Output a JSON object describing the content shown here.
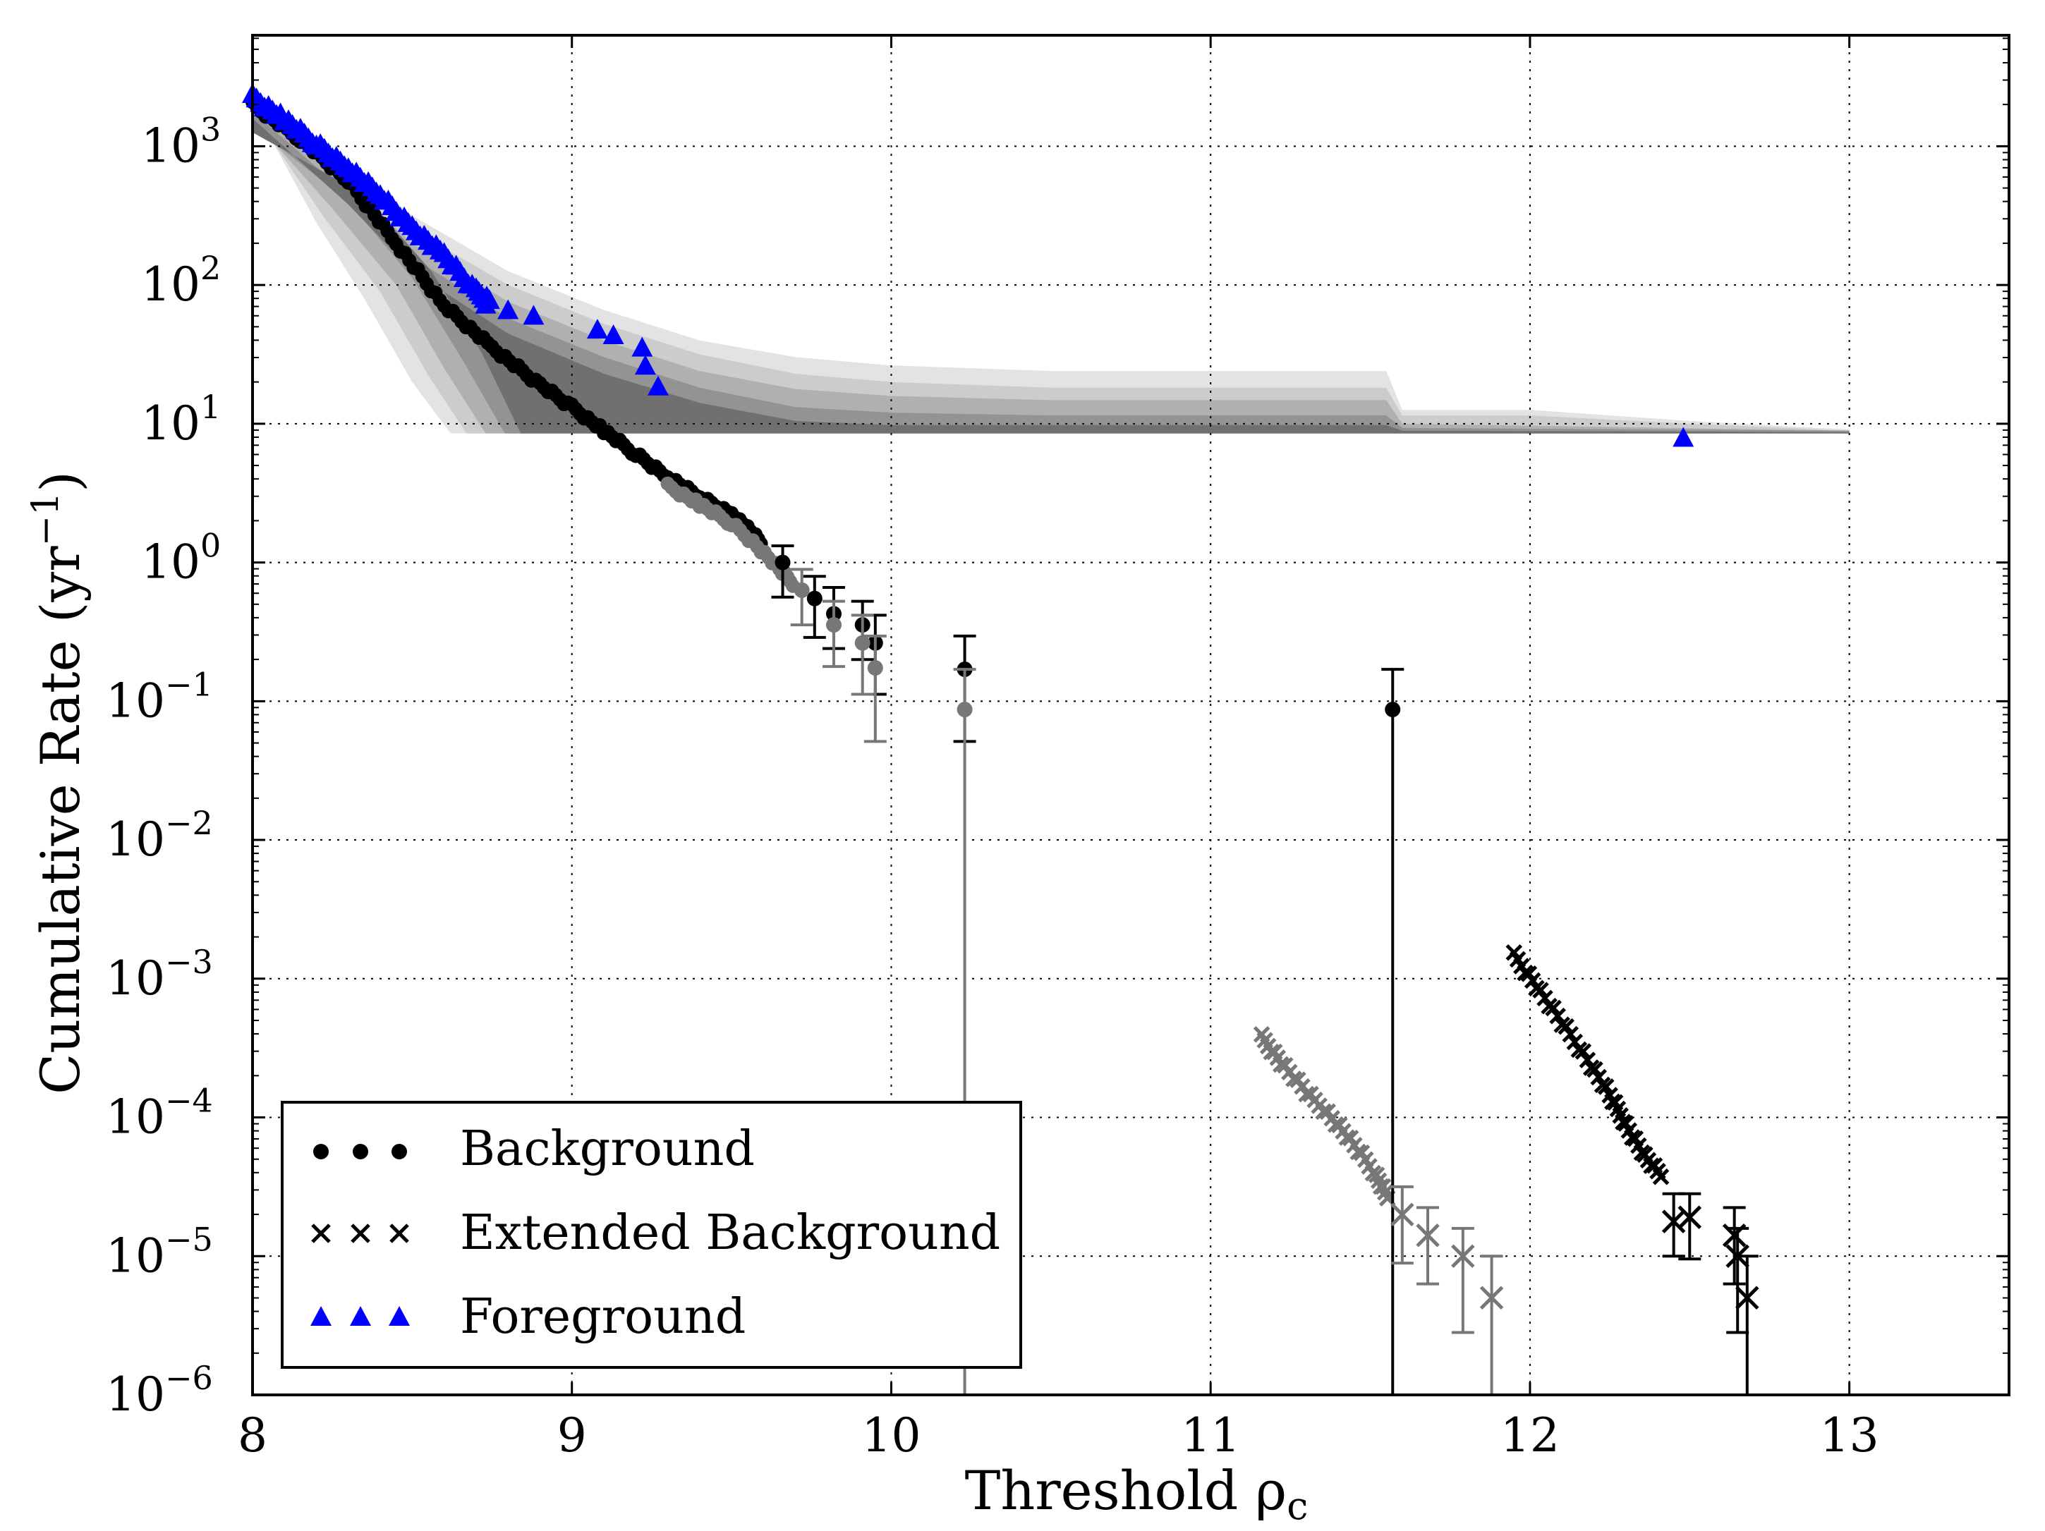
{
  "chart_data": {
    "type": "scatter",
    "xlabel": "Threshold ρ",
    "xlabel_sub": "c",
    "ylabel": "Cumulative Rate (yr",
    "ylabel_sup": "−1",
    "ylabel_close": ")",
    "xlim": [
      8,
      13.5
    ],
    "ylim_log10": [
      -6,
      3.8
    ],
    "y_scale": "log",
    "grid": true,
    "x_ticks": [
      {
        "value": 8,
        "label": "8"
      },
      {
        "value": 9,
        "label": "9"
      },
      {
        "value": 10,
        "label": "10"
      },
      {
        "value": 11,
        "label": "11"
      },
      {
        "value": 12,
        "label": "12"
      },
      {
        "value": 13,
        "label": "13"
      }
    ],
    "y_ticks": [
      {
        "exp": 3,
        "base": "10",
        "sup": "3"
      },
      {
        "exp": 2,
        "base": "10",
        "sup": "2"
      },
      {
        "exp": 1,
        "base": "10",
        "sup": "1"
      },
      {
        "exp": 0,
        "base": "10",
        "sup": "0"
      },
      {
        "exp": -1,
        "base": "10",
        "sup": "−1"
      },
      {
        "exp": -2,
        "base": "10",
        "sup": "−2"
      },
      {
        "exp": -3,
        "base": "10",
        "sup": "−3"
      },
      {
        "exp": -4,
        "base": "10",
        "sup": "−4"
      },
      {
        "exp": -5,
        "base": "10",
        "sup": "−5"
      },
      {
        "exp": -6,
        "base": "10",
        "sup": "−6"
      }
    ],
    "legend": {
      "position": "lower-left",
      "entries": [
        {
          "label": "Background",
          "marker": "circle",
          "color": "#000000"
        },
        {
          "label": "Extended Background",
          "marker": "x",
          "color": "#000000"
        },
        {
          "label": "Foreground",
          "marker": "triangle",
          "color": "#0000ff"
        }
      ]
    },
    "colors": {
      "primary": "#000000",
      "secondary": "#777777",
      "foreground": "#0000ff",
      "band_shades": [
        "#e3e3e3",
        "#cccccc",
        "#b0b0b0",
        "#939393",
        "#707070"
      ]
    },
    "bands": [
      {
        "name": "sigma5",
        "upper": [
          [
            8,
            3.4
          ],
          [
            8.3,
            2.88
          ],
          [
            8.5,
            2.5
          ],
          [
            8.8,
            2.1
          ],
          [
            9.1,
            1.82
          ],
          [
            9.4,
            1.6
          ],
          [
            9.7,
            1.48
          ],
          [
            10.0,
            1.42
          ],
          [
            10.5,
            1.38
          ],
          [
            11.2,
            1.38
          ],
          [
            11.55,
            1.38
          ],
          [
            11.6,
            1.1
          ],
          [
            12.0,
            1.1
          ],
          [
            12.5,
            1.02
          ],
          [
            12.9,
            0.97
          ],
          [
            13.0,
            0.96
          ]
        ],
        "lower": [
          [
            13.0,
            0.93
          ],
          [
            8.62,
            0.93
          ],
          [
            8.5,
            1.3
          ],
          [
            8.35,
            1.9
          ],
          [
            8.2,
            2.45
          ],
          [
            8.0,
            3.3
          ]
        ]
      },
      {
        "name": "sigma4",
        "upper": [
          [
            8,
            3.35
          ],
          [
            8.3,
            2.8
          ],
          [
            8.5,
            2.4
          ],
          [
            8.8,
            2.0
          ],
          [
            9.1,
            1.72
          ],
          [
            9.4,
            1.5
          ],
          [
            9.7,
            1.36
          ],
          [
            10.0,
            1.3
          ],
          [
            10.5,
            1.26
          ],
          [
            11.2,
            1.26
          ],
          [
            11.55,
            1.26
          ],
          [
            11.6,
            1.06
          ],
          [
            12.0,
            1.06
          ],
          [
            12.5,
            1.0
          ],
          [
            12.9,
            0.96
          ],
          [
            13.0,
            0.95
          ]
        ],
        "lower": [
          [
            13.0,
            0.93
          ],
          [
            8.67,
            0.93
          ],
          [
            8.55,
            1.35
          ],
          [
            8.4,
            1.95
          ],
          [
            8.22,
            2.5
          ],
          [
            8.0,
            3.25
          ]
        ]
      },
      {
        "name": "sigma3",
        "upper": [
          [
            8,
            3.3
          ],
          [
            8.3,
            2.72
          ],
          [
            8.5,
            2.3
          ],
          [
            8.8,
            1.88
          ],
          [
            9.1,
            1.6
          ],
          [
            9.4,
            1.38
          ],
          [
            9.7,
            1.25
          ],
          [
            10.0,
            1.2
          ],
          [
            10.5,
            1.17
          ],
          [
            11.55,
            1.17
          ],
          [
            11.6,
            1.0
          ],
          [
            13.0,
            0.95
          ]
        ],
        "lower": [
          [
            13.0,
            0.93
          ],
          [
            8.73,
            0.93
          ],
          [
            8.6,
            1.4
          ],
          [
            8.45,
            2.0
          ],
          [
            8.25,
            2.55
          ],
          [
            8.0,
            3.2
          ]
        ]
      },
      {
        "name": "sigma2",
        "upper": [
          [
            8,
            3.25
          ],
          [
            8.3,
            2.65
          ],
          [
            8.5,
            2.2
          ],
          [
            8.8,
            1.76
          ],
          [
            9.1,
            1.48
          ],
          [
            9.4,
            1.26
          ],
          [
            9.7,
            1.12
          ],
          [
            10.0,
            1.08
          ],
          [
            10.5,
            1.06
          ],
          [
            11.55,
            1.06
          ],
          [
            11.6,
            0.97
          ],
          [
            13.0,
            0.95
          ]
        ],
        "lower": [
          [
            13.0,
            0.93
          ],
          [
            8.79,
            0.93
          ],
          [
            8.66,
            1.45
          ],
          [
            8.5,
            2.05
          ],
          [
            8.3,
            2.6
          ],
          [
            8.0,
            3.15
          ]
        ]
      },
      {
        "name": "sigma1",
        "upper": [
          [
            8,
            3.2
          ],
          [
            8.3,
            2.58
          ],
          [
            8.5,
            2.1
          ],
          [
            8.8,
            1.65
          ],
          [
            9.1,
            1.36
          ],
          [
            9.4,
            1.15
          ],
          [
            9.7,
            1.02
          ],
          [
            10.0,
            0.99
          ],
          [
            11.55,
            0.99
          ],
          [
            11.6,
            0.95
          ],
          [
            13.0,
            0.94
          ]
        ],
        "lower": [
          [
            13.0,
            0.93
          ],
          [
            8.84,
            0.93
          ],
          [
            8.72,
            1.5
          ],
          [
            8.56,
            2.1
          ],
          [
            8.35,
            2.65
          ],
          [
            8.0,
            3.1
          ]
        ]
      }
    ],
    "series": [
      {
        "name": "Background (upper)",
        "marker": "circle",
        "color": "#000000",
        "points": [
          [
            9.66,
            0.0
          ],
          [
            9.76,
            -0.26
          ],
          [
            9.82,
            -0.37
          ],
          [
            9.91,
            -0.45
          ],
          [
            9.95,
            -0.58
          ],
          [
            10.23,
            -0.77
          ],
          [
            11.57,
            -1.06
          ]
        ],
        "err_lo": [
          [
            9.66,
            -0.25
          ],
          [
            9.76,
            -0.54
          ],
          [
            9.82,
            -0.62
          ],
          [
            9.91,
            -0.7
          ],
          [
            9.95,
            -0.95
          ],
          [
            10.23,
            -1.29
          ],
          [
            11.57,
            -6.0
          ]
        ],
        "err_hi": [
          [
            9.66,
            0.12
          ],
          [
            9.76,
            -0.1
          ],
          [
            9.82,
            -0.18
          ],
          [
            9.91,
            -0.28
          ],
          [
            9.95,
            -0.38
          ],
          [
            10.23,
            -0.53
          ],
          [
            11.57,
            -0.77
          ]
        ]
      },
      {
        "name": "Background (lower)",
        "marker": "circle",
        "color": "#777777",
        "points": [
          [
            9.72,
            -0.2
          ],
          [
            9.82,
            -0.45
          ],
          [
            9.91,
            -0.58
          ],
          [
            9.95,
            -0.76
          ],
          [
            10.23,
            -1.06
          ]
        ],
        "err_lo": [
          [
            9.72,
            -0.45
          ],
          [
            9.82,
            -0.75
          ],
          [
            9.91,
            -0.95
          ],
          [
            9.95,
            -1.29
          ],
          [
            10.23,
            -6.0
          ]
        ],
        "err_hi": [
          [
            9.72,
            -0.05
          ],
          [
            9.82,
            -0.28
          ],
          [
            9.91,
            -0.38
          ],
          [
            9.95,
            -0.53
          ],
          [
            10.23,
            -0.77
          ]
        ]
      },
      {
        "name": "Extended Background (black)",
        "marker": "x",
        "color": "#000000",
        "points": [
          [
            12.45,
            -4.75
          ],
          [
            12.5,
            -4.72
          ],
          [
            12.64,
            -4.85
          ],
          [
            12.65,
            -5.0
          ],
          [
            12.68,
            -5.3
          ]
        ],
        "err_lo": [
          [
            12.45,
            -5.0
          ],
          [
            12.5,
            -5.02
          ],
          [
            12.64,
            -5.2
          ],
          [
            12.65,
            -5.55
          ],
          [
            12.68,
            -6.0
          ]
        ],
        "err_hi": [
          [
            12.45,
            -4.55
          ],
          [
            12.5,
            -4.55
          ],
          [
            12.64,
            -4.65
          ],
          [
            12.65,
            -4.8
          ],
          [
            12.68,
            -5.0
          ]
        ]
      },
      {
        "name": "Extended Background (grey)",
        "marker": "x",
        "color": "#777777",
        "points": [
          [
            11.6,
            -4.7
          ],
          [
            11.68,
            -4.85
          ],
          [
            11.79,
            -5.0
          ],
          [
            11.88,
            -5.3
          ]
        ],
        "err_lo": [
          [
            11.6,
            -5.05
          ],
          [
            11.68,
            -5.2
          ],
          [
            11.79,
            -5.55
          ],
          [
            11.88,
            -6.0
          ]
        ],
        "err_hi": [
          [
            11.6,
            -4.5
          ],
          [
            11.68,
            -4.65
          ],
          [
            11.79,
            -4.8
          ],
          [
            11.88,
            -5.0
          ]
        ]
      },
      {
        "name": "Foreground",
        "marker": "triangle",
        "color": "#0000ff",
        "points": [
          [
            8.73,
            1.86
          ],
          [
            8.8,
            1.82
          ],
          [
            8.88,
            1.78
          ],
          [
            9.08,
            1.68
          ],
          [
            9.13,
            1.64
          ],
          [
            9.22,
            1.55
          ],
          [
            9.23,
            1.42
          ],
          [
            9.27,
            1.27
          ],
          [
            12.48,
            0.9
          ]
        ]
      }
    ],
    "dense_tracks": [
      {
        "name": "Background main track",
        "marker": "circle",
        "color": "#000000",
        "points": [
          [
            8.0,
            3.3
          ],
          [
            8.15,
            3.05
          ],
          [
            8.3,
            2.75
          ],
          [
            8.45,
            2.3
          ],
          [
            8.6,
            1.85
          ],
          [
            8.75,
            1.55
          ],
          [
            8.9,
            1.28
          ],
          [
            9.0,
            1.12
          ],
          [
            9.1,
            0.95
          ],
          [
            9.2,
            0.78
          ],
          [
            9.3,
            0.62
          ],
          [
            9.4,
            0.47
          ],
          [
            9.5,
            0.35
          ],
          [
            9.55,
            0.25
          ],
          [
            9.6,
            0.12
          ]
        ]
      },
      {
        "name": "Background grey track",
        "marker": "circle",
        "color": "#777777",
        "points": [
          [
            9.3,
            0.55
          ],
          [
            9.4,
            0.42
          ],
          [
            9.5,
            0.28
          ],
          [
            9.58,
            0.12
          ],
          [
            9.65,
            -0.05
          ],
          [
            9.7,
            -0.17
          ]
        ]
      },
      {
        "name": "Extended Background black track",
        "marker": "x",
        "color": "#000000",
        "points": [
          [
            11.95,
            -2.83
          ],
          [
            12.02,
            -3.05
          ],
          [
            12.1,
            -3.32
          ],
          [
            12.18,
            -3.58
          ],
          [
            12.25,
            -3.84
          ],
          [
            12.3,
            -4.05
          ],
          [
            12.36,
            -4.28
          ],
          [
            12.42,
            -4.45
          ]
        ]
      },
      {
        "name": "Extended Background grey track",
        "marker": "x",
        "color": "#777777",
        "points": [
          [
            11.16,
            -3.42
          ],
          [
            11.22,
            -3.6
          ],
          [
            11.3,
            -3.82
          ],
          [
            11.38,
            -4.0
          ],
          [
            11.45,
            -4.2
          ],
          [
            11.52,
            -4.42
          ],
          [
            11.56,
            -4.6
          ]
        ]
      },
      {
        "name": "Foreground track",
        "marker": "triangle",
        "color": "#0000ff",
        "points": [
          [
            8.0,
            3.36
          ],
          [
            8.1,
            3.2
          ],
          [
            8.2,
            3.02
          ],
          [
            8.3,
            2.85
          ],
          [
            8.4,
            2.65
          ],
          [
            8.5,
            2.42
          ],
          [
            8.6,
            2.22
          ],
          [
            8.7,
            1.96
          ],
          [
            8.75,
            1.88
          ]
        ]
      }
    ]
  }
}
